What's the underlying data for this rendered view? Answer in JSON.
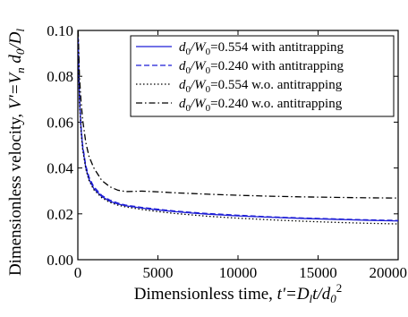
{
  "chart_data": {
    "type": "line",
    "xlabel_main": "Dimensionless time, ",
    "xlabel_t": "t'",
    "xlabel_eq": "=D",
    "xlabel_l": "l",
    "xlabel_t2": "t/d",
    "xlabel_0": "0",
    "xlabel_2": "2",
    "ylabel_main": "Dimensionless velocity, ",
    "ylabel_v": "V'",
    "ylabel_eq": "=V",
    "ylabel_n": "n",
    "ylabel_d": " d",
    "ylabel_0": "0",
    "ylabel_slash": "/D",
    "ylabel_l": "l",
    "xlim": [
      0,
      20000
    ],
    "ylim": [
      0.0,
      0.1
    ],
    "xticks": [
      0,
      5000,
      10000,
      15000,
      20000
    ],
    "xtick_labels": [
      "0",
      "5000",
      "10000",
      "15000",
      "20000"
    ],
    "yticks": [
      0.0,
      0.02,
      0.04,
      0.06,
      0.08,
      0.1
    ],
    "ytick_labels": [
      "0.00",
      "0.02",
      "0.04",
      "0.06",
      "0.08",
      "0.10"
    ],
    "legend_position": "top-right",
    "legend_prefix_d": "d",
    "legend_prefix_0": "0",
    "legend_prefix_w": "/W",
    "series": [
      {
        "name": "d0/W0=0.554 with antitrapping",
        "legend_value": "=0.554 with antitrapping",
        "color": "#1f1fd6",
        "dash": "solid",
        "x": [
          20,
          100,
          200,
          300,
          500,
          700,
          1000,
          1500,
          2000,
          2500,
          3000,
          4000,
          5000,
          6000,
          7000,
          8000,
          10000,
          12000,
          14000,
          16000,
          18000,
          20000
        ],
        "y": [
          0.097,
          0.07,
          0.057,
          0.049,
          0.04,
          0.035,
          0.031,
          0.0275,
          0.0255,
          0.0243,
          0.0235,
          0.0225,
          0.0217,
          0.021,
          0.0204,
          0.0199,
          0.0191,
          0.0185,
          0.018,
          0.0176,
          0.0172,
          0.0169
        ]
      },
      {
        "name": "d0/W0=0.240 with antitrapping",
        "legend_value": "=0.240 with antitrapping",
        "color": "#1f1fd6",
        "dash": "dashed",
        "x": [
          20,
          100,
          200,
          300,
          500,
          700,
          1000,
          1500,
          2000,
          2500,
          3000,
          4000,
          5000,
          6000,
          7000,
          8000,
          10000,
          12000,
          14000,
          16000,
          18000,
          20000
        ],
        "y": [
          0.097,
          0.071,
          0.058,
          0.05,
          0.041,
          0.036,
          0.0318,
          0.028,
          0.026,
          0.0247,
          0.0238,
          0.0228,
          0.022,
          0.0213,
          0.0207,
          0.0202,
          0.0194,
          0.0187,
          0.0182,
          0.0178,
          0.0174,
          0.0171
        ]
      },
      {
        "name": "d0/W0=0.554 w.o. antitrapping",
        "legend_value": "=0.554 w.o. antitrapping",
        "color": "#000000",
        "dash": "dotted",
        "x": [
          20,
          100,
          200,
          300,
          500,
          700,
          1000,
          1500,
          2000,
          2500,
          3000,
          4000,
          5000,
          6000,
          7000,
          8000,
          10000,
          12000,
          14000,
          16000,
          18000,
          20000
        ],
        "y": [
          0.097,
          0.069,
          0.056,
          0.048,
          0.0395,
          0.0345,
          0.0305,
          0.027,
          0.025,
          0.0238,
          0.023,
          0.0219,
          0.021,
          0.0202,
          0.0196,
          0.019,
          0.0181,
          0.0174,
          0.0168,
          0.0163,
          0.0159,
          0.0156
        ]
      },
      {
        "name": "d0/W0=0.240 w.o. antitrapping",
        "legend_value": "=0.240 w.o. antitrapping",
        "color": "#000000",
        "dash": "dashdot",
        "x": [
          20,
          100,
          200,
          300,
          500,
          700,
          1000,
          1500,
          2000,
          2500,
          3000,
          3500,
          4000,
          5000,
          6000,
          7000,
          8000,
          10000,
          12000,
          14000,
          16000,
          18000,
          20000
        ],
        "y": [
          0.1,
          0.08,
          0.069,
          0.061,
          0.051,
          0.045,
          0.04,
          0.0345,
          0.0318,
          0.0303,
          0.0297,
          0.0298,
          0.0299,
          0.0296,
          0.0292,
          0.0289,
          0.0286,
          0.0281,
          0.0277,
          0.0274,
          0.0272,
          0.027,
          0.0269
        ]
      }
    ]
  }
}
